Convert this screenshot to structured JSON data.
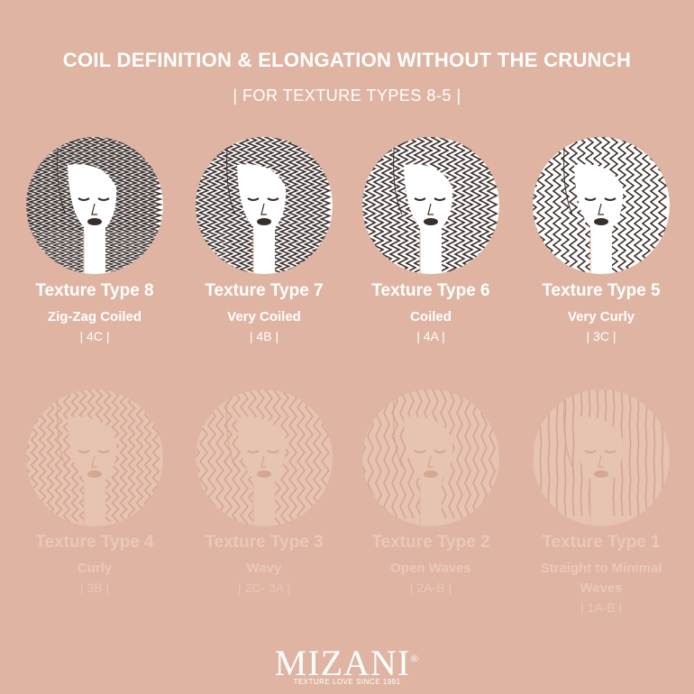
{
  "header": {
    "title": "COIL DEFINITION & ELONGATION WITHOUT THE CRUNCH",
    "subtitle": "| FOR TEXTURE TYPES 8-5 |"
  },
  "types": [
    {
      "name": "Texture Type 8",
      "description": "Zig-Zag Coiled",
      "code": "| 4C |"
    },
    {
      "name": "Texture Type 7",
      "description": "Very Coiled",
      "code": "| 4B |"
    },
    {
      "name": "Texture Type 6",
      "description": "Coiled",
      "code": "| 4A |"
    },
    {
      "name": "Texture Type 5",
      "description": "Very Curly",
      "code": "| 3C |"
    },
    {
      "name": "Texture Type 4",
      "description": "Curly",
      "code": "| 3B |"
    },
    {
      "name": "Texture Type 3",
      "description": "Wavy",
      "code": "| 2C- 3A |"
    },
    {
      "name": "Texture Type 2",
      "description": "Open Waves",
      "code": "| 2A-B |"
    },
    {
      "name": "Texture Type 1",
      "description": "Straight to Minimal Waves",
      "code": "| 1A-B |"
    }
  ],
  "brand": {
    "logo": "MIZANI",
    "mark": "®",
    "tagline": "TEXTURE LOVE SINCE 1991"
  }
}
